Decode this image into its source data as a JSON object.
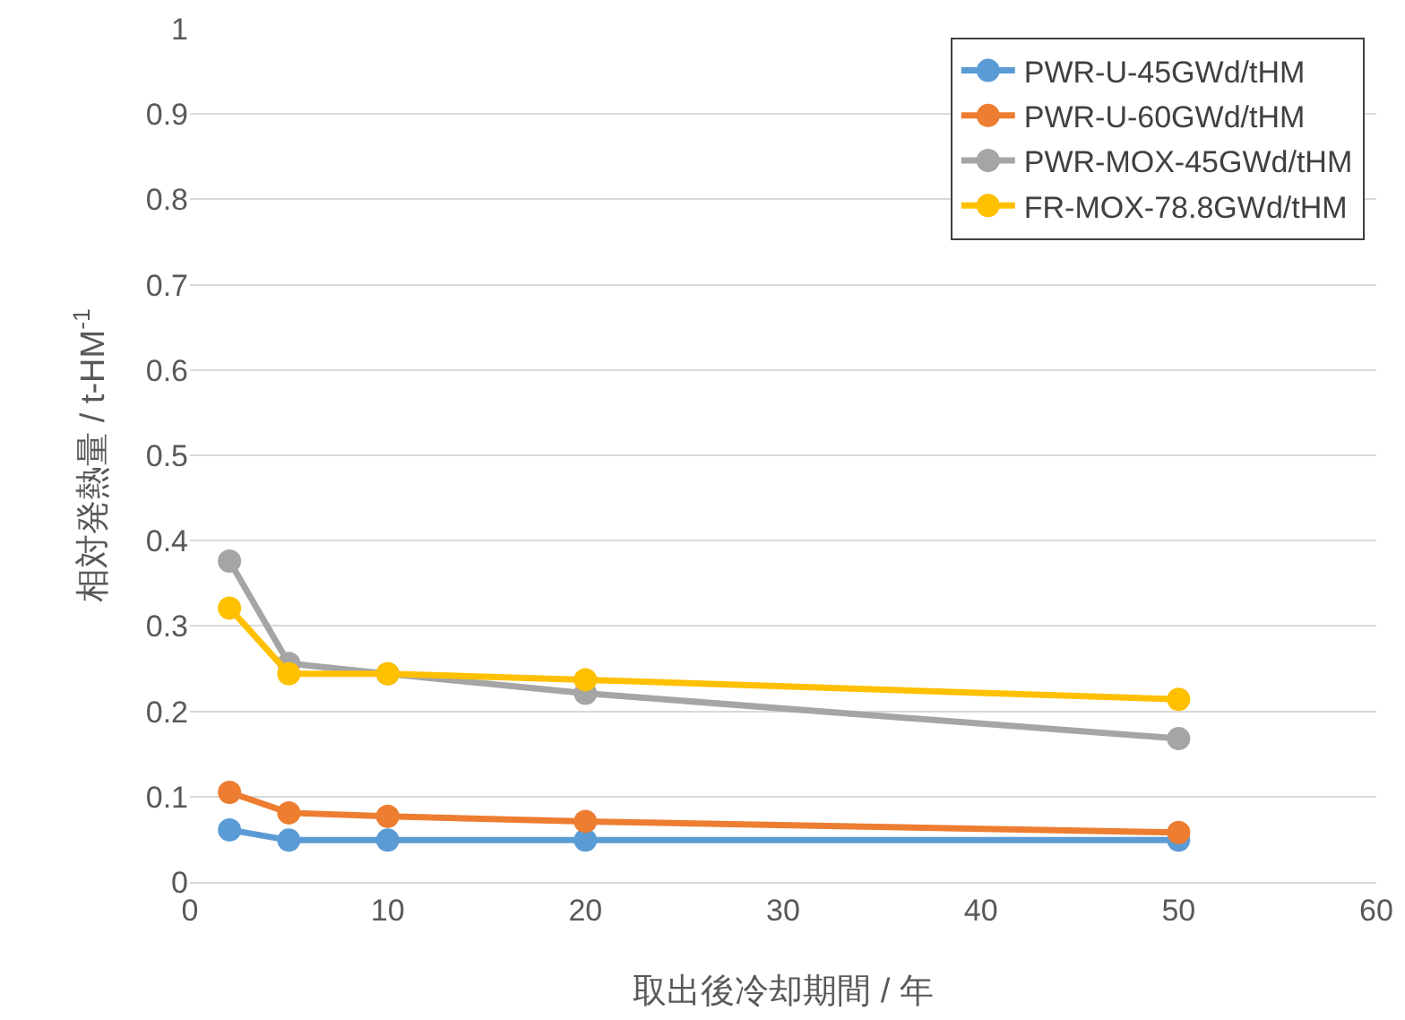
{
  "chart_data": {
    "type": "line",
    "xlabel": "取出後冷却期間 / 年",
    "ylabel": "相対発熱量 / t-HM$^{-1}$",
    "x": [
      2,
      5,
      10,
      20,
      50
    ],
    "series": [
      {
        "name": "PWR-U-45GWd/tHM",
        "color": "#5b9bd5",
        "values": [
          0.061,
          0.049,
          0.049,
          0.049,
          0.049
        ]
      },
      {
        "name": "PWR-U-60GWd/tHM",
        "color": "#ed7d31",
        "values": [
          0.105,
          0.081,
          0.077,
          0.071,
          0.058
        ]
      },
      {
        "name": "PWR-MOX-45GWd/tHM",
        "color": "#a5a5a5",
        "values": [
          0.376,
          0.256,
          0.244,
          0.221,
          0.168
        ]
      },
      {
        "name": "FR-MOX-78.8GWd/tHM",
        "color": "#ffc000",
        "values": [
          0.321,
          0.244,
          0.244,
          0.237,
          0.214
        ]
      }
    ],
    "xlim": [
      0,
      60
    ],
    "xticks": [
      0,
      10,
      20,
      30,
      40,
      50,
      60
    ],
    "ylim": [
      0,
      1
    ],
    "yticks": [
      0,
      0.1,
      0.2,
      0.3,
      0.4,
      0.5,
      0.6,
      0.7,
      0.8,
      0.9,
      1
    ],
    "grid": "y",
    "legend": "top right",
    "marker": "circle",
    "line_style": "solid"
  }
}
